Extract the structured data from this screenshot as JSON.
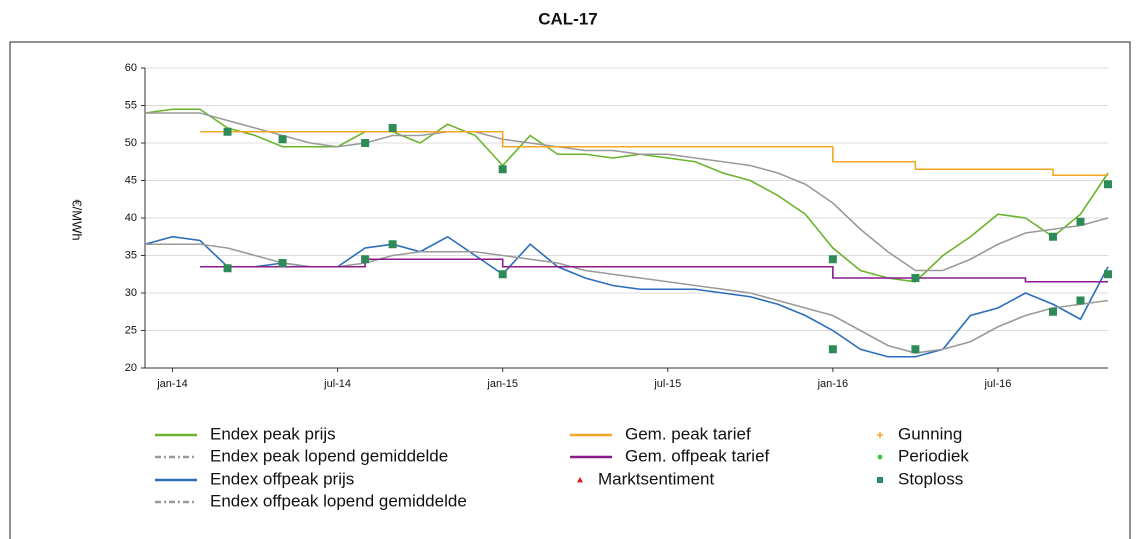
{
  "chart_data": {
    "type": "line",
    "title": "CAL-17",
    "ylabel": "€/MWh",
    "x": [
      "2013-12",
      "2014-01",
      "2014-02",
      "2014-03",
      "2014-04",
      "2014-05",
      "2014-06",
      "2014-07",
      "2014-08",
      "2014-09",
      "2014-10",
      "2014-11",
      "2014-12",
      "2015-01",
      "2015-02",
      "2015-03",
      "2015-04",
      "2015-05",
      "2015-06",
      "2015-07",
      "2015-08",
      "2015-09",
      "2015-10",
      "2015-11",
      "2015-12",
      "2016-01",
      "2016-02",
      "2016-03",
      "2016-04",
      "2016-05",
      "2016-06",
      "2016-07",
      "2016-08",
      "2016-09",
      "2016-10",
      "2016-11"
    ],
    "xlim": [
      "2013-12",
      "2016-11"
    ],
    "xticks": [
      {
        "value": "2014-01",
        "label": "jan-14"
      },
      {
        "value": "2014-07",
        "label": "jul-14"
      },
      {
        "value": "2015-01",
        "label": "jan-15"
      },
      {
        "value": "2015-07",
        "label": "jul-15"
      },
      {
        "value": "2016-01",
        "label": "jan-16"
      },
      {
        "value": "2016-07",
        "label": "jul-16"
      }
    ],
    "ylim": [
      20,
      60
    ],
    "yticks": [
      20,
      25,
      30,
      35,
      40,
      45,
      50,
      55,
      60
    ],
    "grid": true,
    "series": [
      {
        "name": "Endex peak prijs",
        "color": "#6ab42d",
        "values": [
          54,
          54.5,
          54.5,
          52,
          51,
          49.5,
          49.5,
          49.5,
          51.5,
          51.5,
          50,
          52.5,
          51,
          47,
          51,
          48.5,
          48.5,
          48,
          48.5,
          48,
          47.5,
          46,
          45,
          43,
          40.5,
          36,
          33,
          32,
          31.5,
          35,
          37.5,
          40.5,
          40,
          37.5,
          40.5,
          46
        ]
      },
      {
        "name": "Endex peak lopend gemiddelde",
        "color": "#9a9a9a",
        "legend_line": "dashdot",
        "values": [
          54,
          54,
          54,
          53,
          52,
          51,
          50,
          49.5,
          50,
          51,
          51,
          51.5,
          51.5,
          50.5,
          50,
          49.5,
          49,
          49,
          48.5,
          48.5,
          48,
          47.5,
          47,
          46,
          44.5,
          42,
          38.5,
          35.5,
          33,
          33,
          34.5,
          36.5,
          38,
          38.5,
          39,
          40
        ]
      },
      {
        "name": "Endex offpeak prijs",
        "color": "#2a6ebb",
        "values": [
          36.5,
          37.5,
          37,
          33.5,
          33.5,
          34,
          33.5,
          33.5,
          36,
          36.5,
          35.5,
          37.5,
          35,
          32.5,
          36.5,
          33.5,
          32,
          31,
          30.5,
          30.5,
          30.5,
          30,
          29.5,
          28.5,
          27,
          25,
          22.5,
          21.5,
          21.5,
          22.5,
          27,
          28,
          30,
          28.5,
          26.5,
          33.5
        ]
      },
      {
        "name": "Endex offpeak lopend gemiddelde",
        "color": "#9a9a9a",
        "legend_line": "dashdot",
        "values": [
          36.5,
          36.5,
          36.5,
          36,
          35,
          34,
          33.5,
          33.5,
          34,
          35,
          35.5,
          35.5,
          35.5,
          35,
          34.5,
          34,
          33,
          32.5,
          32,
          31.5,
          31,
          30.5,
          30,
          29,
          28,
          27,
          25,
          23,
          22,
          22.5,
          23.5,
          25.5,
          27,
          28,
          28.5,
          29
        ]
      },
      {
        "name": "Gem. peak tarief",
        "color": "#f5a623",
        "step": true,
        "values": [
          null,
          null,
          51.5,
          51.5,
          51.5,
          51.5,
          51.5,
          51.5,
          51.5,
          51.5,
          51.5,
          51.5,
          51.5,
          49.5,
          49.5,
          49.5,
          49.5,
          49.5,
          49.5,
          49.5,
          49.5,
          49.5,
          49.5,
          49.5,
          49.5,
          47.5,
          47.5,
          47.5,
          46.5,
          46.5,
          46.5,
          46.5,
          46.5,
          45.7,
          45.7,
          45.7
        ]
      },
      {
        "name": "Gem. offpeak  tarief",
        "color": "#8b1a8b",
        "step": true,
        "values": [
          null,
          null,
          33.5,
          33.5,
          33.5,
          33.5,
          33.5,
          33.5,
          34.5,
          34.5,
          34.5,
          34.5,
          34.5,
          33.5,
          33.5,
          33.5,
          33.5,
          33.5,
          33.5,
          33.5,
          33.5,
          33.5,
          33.5,
          33.5,
          33.5,
          32,
          32,
          32,
          32,
          32,
          32,
          32,
          31.5,
          31.5,
          31.5,
          31.5
        ]
      },
      {
        "name": "Marktsentiment",
        "color": "#e8141b",
        "type": "scatter",
        "marker": "triangle",
        "x": [],
        "values": []
      },
      {
        "name": "Gunning",
        "color": "#f5a623",
        "type": "scatter",
        "marker": "plus",
        "x": [],
        "values": []
      },
      {
        "name": "Periodiek",
        "color": "#3cc43c",
        "type": "scatter",
        "marker": "circle",
        "x": [],
        "values": []
      },
      {
        "name": "Stoploss",
        "color": "#2e8b57",
        "type": "scatter",
        "marker": "square",
        "x": [
          "2014-03",
          "2014-03",
          "2014-05",
          "2014-05",
          "2014-08",
          "2014-08",
          "2014-09",
          "2014-09",
          "2015-01",
          "2015-01",
          "2016-01",
          "2016-01",
          "2016-04",
          "2016-04",
          "2016-09",
          "2016-09",
          "2016-10",
          "2016-10",
          "2016-11",
          "2016-11"
        ],
        "values": [
          51.5,
          33.3,
          50.5,
          34,
          50,
          34.5,
          52,
          36.5,
          46.5,
          32.5,
          34.5,
          22.5,
          32,
          22.5,
          37.5,
          27.5,
          39.5,
          29,
          44.5,
          32.5
        ]
      }
    ]
  }
}
